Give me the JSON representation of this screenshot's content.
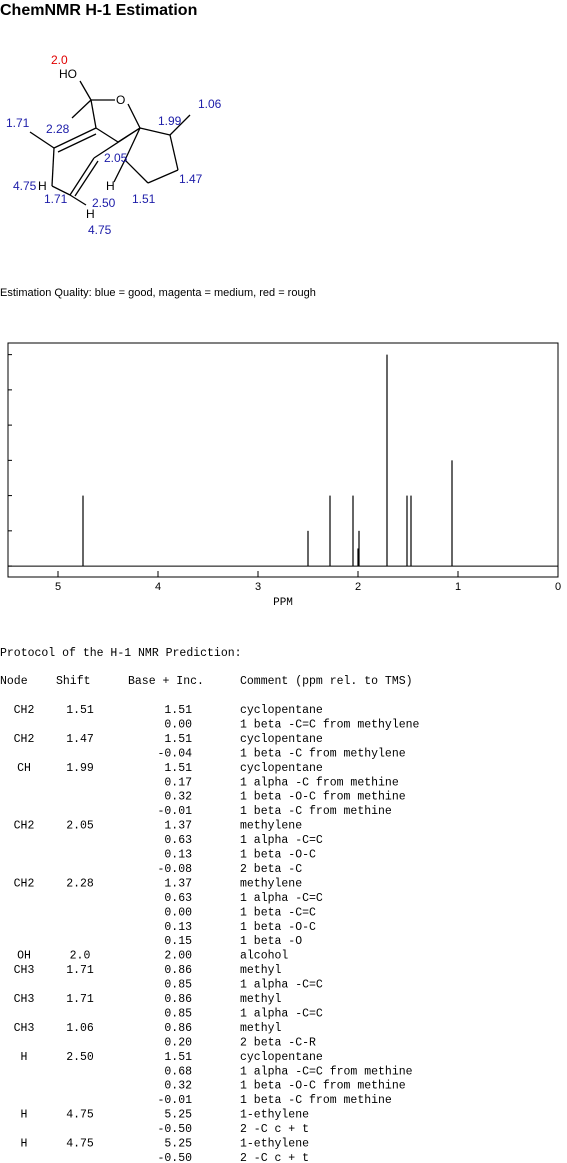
{
  "header": {
    "title": "ChemNMR H-1 Estimation"
  },
  "molecule": {
    "labels": [
      {
        "text": "2.0",
        "color": "#e00000"
      },
      {
        "text": "HO",
        "color": "#000000"
      },
      {
        "text": "O",
        "color": "#000000"
      },
      {
        "text": "1.06",
        "color": "#1c1ca8"
      },
      {
        "text": "1.71",
        "color": "#1c1ca8"
      },
      {
        "text": "2.28",
        "color": "#1c1ca8"
      },
      {
        "text": "1.99",
        "color": "#1c1ca8"
      },
      {
        "text": "2.05",
        "color": "#1c1ca8"
      },
      {
        "text": "1.47",
        "color": "#1c1ca8"
      },
      {
        "text": "4.75",
        "color": "#1c1ca8"
      },
      {
        "text": "H",
        "color": "#000000"
      },
      {
        "text": "H",
        "color": "#000000"
      },
      {
        "text": "1.71",
        "color": "#1c1ca8"
      },
      {
        "text": "2.50",
        "color": "#1c1ca8"
      },
      {
        "text": "1.51",
        "color": "#1c1ca8"
      },
      {
        "text": "H",
        "color": "#000000"
      },
      {
        "text": "4.75",
        "color": "#1c1ca8"
      }
    ]
  },
  "quality_note": "Estimation Quality: blue = good, magenta = medium, red = rough",
  "spectrum": {
    "xlabel": "PPM",
    "xlim": [
      5.5,
      0
    ],
    "ylim": [
      -0.31,
      6.33
    ],
    "xticks": [
      5,
      4,
      3,
      2,
      1,
      0
    ],
    "yticks": [
      0,
      1,
      2,
      3,
      4,
      5,
      6
    ],
    "peaks": [
      {
        "ppm": 4.75,
        "height": 2
      },
      {
        "ppm": 2.5,
        "height": 1
      },
      {
        "ppm": 2.28,
        "height": 2
      },
      {
        "ppm": 2.05,
        "height": 2
      },
      {
        "ppm": 2.0,
        "height": 0.5
      },
      {
        "ppm": 1.99,
        "height": 1
      },
      {
        "ppm": 1.71,
        "height": 6
      },
      {
        "ppm": 1.51,
        "height": 2
      },
      {
        "ppm": 1.47,
        "height": 2
      },
      {
        "ppm": 1.06,
        "height": 3
      }
    ]
  },
  "protocol": {
    "title": "Protocol of the H-1 NMR Prediction:",
    "columns": [
      "Node",
      "Shift",
      "Base + Inc.",
      "Comment (ppm rel. to TMS)"
    ],
    "rows": [
      {
        "node": "CH2",
        "shift": "1.51",
        "inc": "1.51",
        "comment": "cyclopentane"
      },
      {
        "inc": "0.00",
        "comment": "1 beta -C=C from methylene"
      },
      {
        "node": "CH2",
        "shift": "1.47",
        "inc": "1.51",
        "comment": "cyclopentane"
      },
      {
        "inc": "-0.04",
        "comment": "1 beta -C from methylene"
      },
      {
        "node": "CH",
        "shift": "1.99",
        "inc": "1.51",
        "comment": "cyclopentane"
      },
      {
        "inc": "0.17",
        "comment": "1 alpha -C from methine"
      },
      {
        "inc": "0.32",
        "comment": "1 beta -O-C from methine"
      },
      {
        "inc": "-0.01",
        "comment": "1 beta -C from methine"
      },
      {
        "node": "CH2",
        "shift": "2.05",
        "inc": "1.37",
        "comment": "methylene"
      },
      {
        "inc": "0.63",
        "comment": "1 alpha -C=C"
      },
      {
        "inc": "0.13",
        "comment": "1 beta -O-C"
      },
      {
        "inc": "-0.08",
        "comment": "2 beta -C"
      },
      {
        "node": "CH2",
        "shift": "2.28",
        "inc": "1.37",
        "comment": "methylene"
      },
      {
        "inc": "0.63",
        "comment": "1 alpha -C=C"
      },
      {
        "inc": "0.00",
        "comment": "1 beta -C=C"
      },
      {
        "inc": "0.13",
        "comment": "1 beta -O-C"
      },
      {
        "inc": "0.15",
        "comment": "1 beta -O"
      },
      {
        "node": "OH",
        "shift": "2.0",
        "inc": "2.00",
        "comment": "alcohol"
      },
      {
        "node": "CH3",
        "shift": "1.71",
        "inc": "0.86",
        "comment": "methyl"
      },
      {
        "inc": "0.85",
        "comment": "1 alpha -C=C"
      },
      {
        "node": "CH3",
        "shift": "1.71",
        "inc": "0.86",
        "comment": "methyl"
      },
      {
        "inc": "0.85",
        "comment": "1 alpha -C=C"
      },
      {
        "node": "CH3",
        "shift": "1.06",
        "inc": "0.86",
        "comment": "methyl"
      },
      {
        "inc": "0.20",
        "comment": "2 beta -C-R"
      },
      {
        "node": "H",
        "shift": "2.50",
        "inc": "1.51",
        "comment": "cyclopentane"
      },
      {
        "inc": "0.68",
        "comment": "1 alpha -C=C from methine"
      },
      {
        "inc": "0.32",
        "comment": "1 beta -O-C from methine"
      },
      {
        "inc": "-0.01",
        "comment": "1 beta -C from methine"
      },
      {
        "node": "H",
        "shift": "4.75",
        "inc": "5.25",
        "comment": "1-ethylene"
      },
      {
        "inc": "-0.50",
        "comment": "2 -C c + t"
      },
      {
        "node": "H",
        "shift": "4.75",
        "inc": "5.25",
        "comment": "1-ethylene"
      },
      {
        "inc": "-0.50",
        "comment": "2 -C c + t"
      }
    ]
  }
}
